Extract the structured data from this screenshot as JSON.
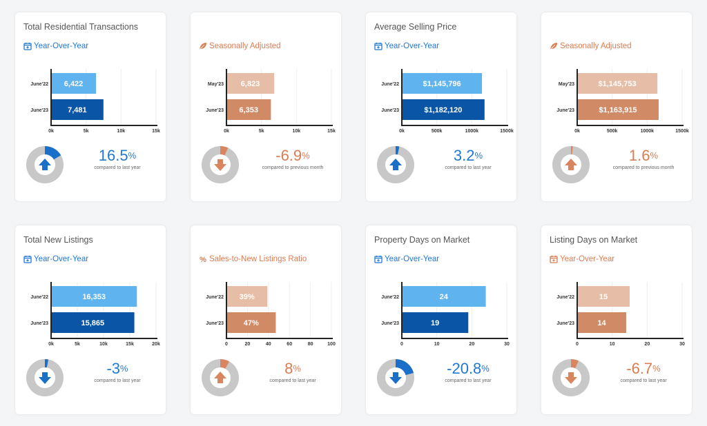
{
  "colors": {
    "blue_light": "#5fb3ee",
    "blue_dark": "#0a55a6",
    "orange_light": "#e6bda6",
    "orange_dark": "#d08a66",
    "blue_text": "#2178d4",
    "orange_text": "#db7c52",
    "pie_base": "#c8c8c8",
    "pie_blue": "#1a6fc9",
    "pie_orange": "#d9855f"
  },
  "cards": [
    {
      "title": "Total Residential Transactions",
      "subtitle": "Year-Over-Year",
      "subtitle_icon": "calendar-icon",
      "theme": "blue",
      "bars": [
        {
          "label": "June'22",
          "value": 6422,
          "text": "6,422"
        },
        {
          "label": "June'23",
          "value": 7481,
          "text": "7,481"
        }
      ],
      "ticks": [
        "0k",
        "5k",
        "10k",
        "15k"
      ],
      "tick_values": [
        0,
        5000,
        10000,
        15000
      ],
      "pct_value": "16.5",
      "pct_sign": "%",
      "compare": "compared to last year",
      "direction": "up",
      "pie_fraction": 0.165
    },
    {
      "title": "",
      "subtitle": "Seasonally Adjusted",
      "subtitle_icon": "leaf-icon",
      "theme": "orange",
      "bars": [
        {
          "label": "May'23",
          "value": 6823,
          "text": "6,823"
        },
        {
          "label": "June'23",
          "value": 6353,
          "text": "6,353"
        }
      ],
      "ticks": [
        "0k",
        "5k",
        "10k",
        "15k"
      ],
      "tick_values": [
        0,
        5000,
        10000,
        15000
      ],
      "pct_value": "-6.9",
      "pct_sign": "%",
      "compare": "compared to previous month",
      "direction": "down",
      "pie_fraction": 0.069
    },
    {
      "title": "Average Selling Price",
      "subtitle": "Year-Over-Year",
      "subtitle_icon": "calendar-icon",
      "theme": "blue",
      "bars": [
        {
          "label": "June'22",
          "value": 1145796,
          "text": "$1,145,796"
        },
        {
          "label": "June'23",
          "value": 1182120,
          "text": "$1,182,120"
        }
      ],
      "ticks": [
        "0k",
        "500k",
        "1000k",
        "1500k"
      ],
      "tick_values": [
        0,
        500000,
        1000000,
        1500000
      ],
      "pct_value": "3.2",
      "pct_sign": "%",
      "compare": "compared to last year",
      "direction": "up",
      "pie_fraction": 0.032
    },
    {
      "title": "",
      "subtitle": "Seasonally Adjusted",
      "subtitle_icon": "leaf-icon",
      "theme": "orange",
      "bars": [
        {
          "label": "May'23",
          "value": 1145753,
          "text": "$1,145,753"
        },
        {
          "label": "June'23",
          "value": 1163915,
          "text": "$1,163,915"
        }
      ],
      "ticks": [
        "0k",
        "500k",
        "1000k",
        "1500k"
      ],
      "tick_values": [
        0,
        500000,
        1000000,
        1500000
      ],
      "pct_value": "1.6",
      "pct_sign": "%",
      "compare": "compared to previous month",
      "direction": "up",
      "pie_fraction": 0.016
    },
    {
      "title": "Total New Listings",
      "subtitle": "Year-Over-Year",
      "subtitle_icon": "calendar-icon",
      "theme": "blue",
      "bars": [
        {
          "label": "June'22",
          "value": 16353,
          "text": "16,353"
        },
        {
          "label": "June'23",
          "value": 15865,
          "text": "15,865"
        }
      ],
      "ticks": [
        "0k",
        "5k",
        "10k",
        "15k",
        "20k"
      ],
      "tick_values": [
        0,
        5000,
        10000,
        15000,
        20000
      ],
      "pct_value": "-3",
      "pct_sign": "%",
      "compare": "compared to last year",
      "direction": "down",
      "pie_fraction": 0.03
    },
    {
      "title": "",
      "subtitle": "Sales-to-New Listings Ratio",
      "subtitle_icon": "percent-icon",
      "theme": "orange",
      "bars": [
        {
          "label": "June'22",
          "value": 39,
          "text": "39%"
        },
        {
          "label": "June'23",
          "value": 47,
          "text": "47%"
        }
      ],
      "ticks": [
        "0",
        "20",
        "40",
        "60",
        "80",
        "100"
      ],
      "tick_values": [
        0,
        20,
        40,
        60,
        80,
        100
      ],
      "pct_value": "8",
      "pct_sign": "%",
      "compare": "compared to last year",
      "direction": "up",
      "pie_fraction": 0.08
    },
    {
      "title": "Property Days on Market",
      "subtitle": "Year-Over-Year",
      "subtitle_icon": "calendar-icon",
      "theme": "blue",
      "bars": [
        {
          "label": "June'22",
          "value": 24,
          "text": "24"
        },
        {
          "label": "June'23",
          "value": 19,
          "text": "19"
        }
      ],
      "ticks": [
        "0",
        "10",
        "20",
        "30"
      ],
      "tick_values": [
        0,
        10,
        20,
        30
      ],
      "pct_value": "-20.8",
      "pct_sign": "%",
      "compare": "compared to last year",
      "direction": "down",
      "pie_fraction": 0.208
    },
    {
      "title": "Listing Days on Market",
      "subtitle": "Year-Over-Year",
      "subtitle_icon": "calendar-icon",
      "theme": "orange",
      "bars": [
        {
          "label": "June'22",
          "value": 15,
          "text": "15"
        },
        {
          "label": "June'23",
          "value": 14,
          "text": "14"
        }
      ],
      "ticks": [
        "0",
        "10",
        "20",
        "30"
      ],
      "tick_values": [
        0,
        10,
        20,
        30
      ],
      "pct_value": "-6.7",
      "pct_sign": "%",
      "compare": "compared to last year",
      "direction": "down",
      "pie_fraction": 0.067
    }
  ]
}
